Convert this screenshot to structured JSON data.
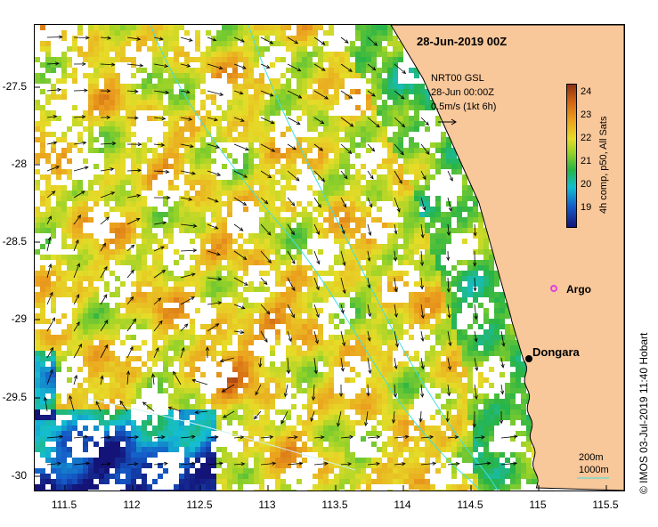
{
  "map": {
    "title": "28-Jun-2019 00Z",
    "legend": {
      "line1": "NRT00 GSL",
      "line2": "28-Jun 00:00Z",
      "line3": "0.5m/s (1kt 6h)"
    },
    "colorbar": {
      "label": "4h comp, p50, All Sats",
      "ticks": [
        "24",
        "23",
        "22",
        "21",
        "20",
        "19"
      ],
      "range": [
        18.4,
        24.6
      ]
    },
    "y_ticks": [
      "-27.5",
      "-28",
      "-28.5",
      "-29",
      "-29.5",
      "-30"
    ],
    "x_ticks": [
      "111.5",
      "112",
      "112.5",
      "113",
      "113.5",
      "114",
      "114.5",
      "115",
      "115.5"
    ],
    "extent": {
      "lon": [
        111.3,
        115.6
      ],
      "lat": [
        -30.1,
        -27.1
      ]
    },
    "places": {
      "argo_label": "Argo",
      "dongara_label": "Dongara"
    },
    "depth_contours": {
      "label_200": "200m",
      "label_1000": "1000m"
    },
    "credit": "© IMOS 03-Jul-2019 11:40 Hobart",
    "colors": {
      "land": "#f8c79a",
      "shelf_contour": "#40e0e0",
      "argo": "#e040e0"
    }
  }
}
